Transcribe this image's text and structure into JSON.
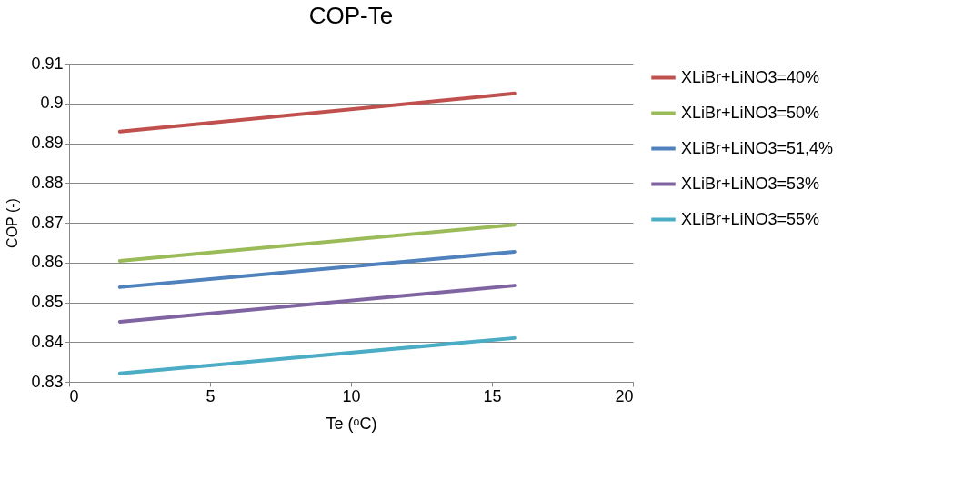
{
  "chart_data": {
    "type": "line",
    "title": "COP-Te",
    "xlabel": "Te (ᵒC)",
    "ylabel": "COP (-)",
    "xlim": [
      0,
      20
    ],
    "xticks": [
      0,
      5,
      10,
      15,
      20
    ],
    "ylim": [
      0.83,
      0.91
    ],
    "yticks": [
      0.83,
      0.84,
      0.85,
      0.86,
      0.87,
      0.88,
      0.89,
      0.9,
      0.91
    ],
    "grid": "y",
    "legend": "right",
    "x": [
      1.8,
      15.8
    ],
    "series": [
      {
        "name": "XLiBr+LiNO3=40%",
        "color": "#c0504d",
        "values": [
          0.8929,
          0.9025
        ]
      },
      {
        "name": "XLiBr+LiNO3=50%",
        "color": "#9bbb59",
        "values": [
          0.8604,
          0.8695
        ]
      },
      {
        "name": "XLiBr+LiNO3=51,4%",
        "color": "#4f81bd",
        "values": [
          0.8538,
          0.8627
        ]
      },
      {
        "name": "XLiBr+LiNO3=53%",
        "color": "#8064a2",
        "values": [
          0.8451,
          0.8542
        ]
      },
      {
        "name": "XLiBr+LiNO3=55%",
        "color": "#4bacc6",
        "values": [
          0.8321,
          0.841
        ]
      }
    ]
  }
}
